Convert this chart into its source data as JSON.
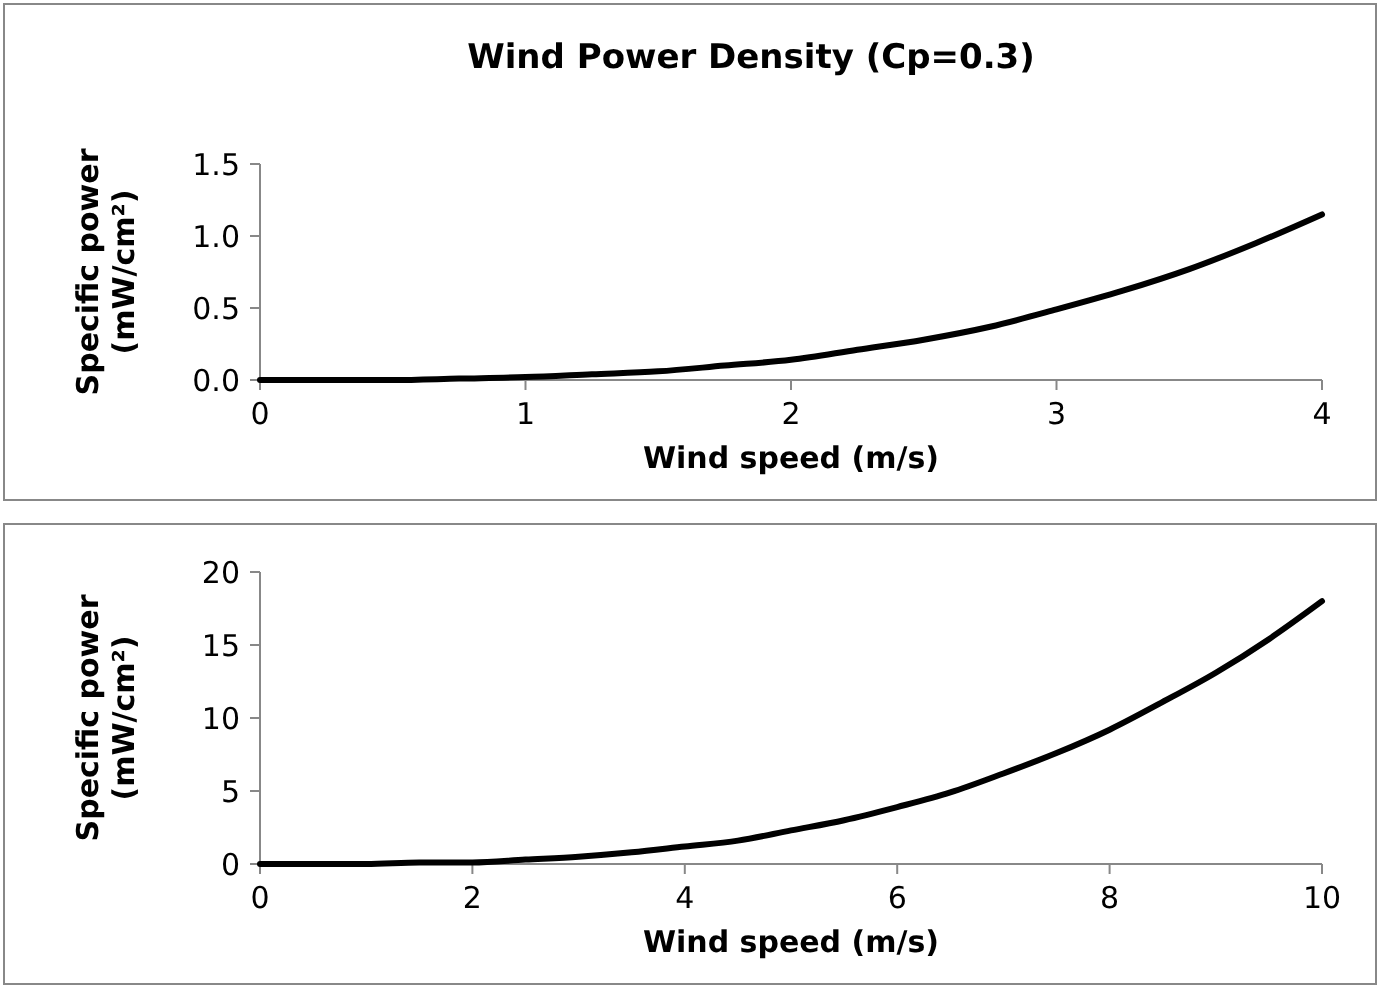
{
  "chart_data": [
    {
      "type": "line",
      "title": "Wind Power Density (Cp=0.3)",
      "xlabel": "Wind speed (m/s)",
      "ylabel": "Specific power\n(mW/cm²)",
      "grid": false,
      "marker": "none",
      "line_style": "solid",
      "x": [
        0,
        0.25,
        0.5,
        0.75,
        1,
        1.25,
        1.5,
        1.75,
        2,
        2.25,
        2.5,
        2.75,
        3,
        3.25,
        3.5,
        3.75,
        4
      ],
      "series": [
        {
          "color": "#000000",
          "values": [
            0,
            0,
            0,
            0.01,
            0.02,
            0.04,
            0.06,
            0.1,
            0.14,
            0.21,
            0.28,
            0.37,
            0.49,
            0.62,
            0.77,
            0.95,
            1.15
          ]
        }
      ],
      "xlim": [
        0,
        4
      ],
      "xticks": [
        0,
        1,
        2,
        3,
        4
      ],
      "ylim": [
        0,
        1.5
      ],
      "yticks": [
        {
          "value": 0,
          "label": "0.0"
        },
        {
          "value": 0.5,
          "label": "0.5"
        },
        {
          "value": 1,
          "label": "1.0"
        },
        {
          "value": 1.5,
          "label": "1.5"
        }
      ]
    },
    {
      "type": "line",
      "xlabel": "Wind speed (m/s)",
      "ylabel": "Specific power\n(mW/cm²)",
      "grid": false,
      "marker": "none",
      "line_style": "solid",
      "x": [
        0,
        0.5,
        1,
        1.5,
        2,
        2.5,
        3,
        3.5,
        4,
        4.5,
        5,
        5.5,
        6,
        6.5,
        7,
        7.5,
        8,
        8.5,
        9,
        9.5,
        10
      ],
      "series": [
        {
          "color": "#000000",
          "values": [
            0,
            0,
            0,
            0.1,
            0.1,
            0.3,
            0.5,
            0.8,
            1.2,
            1.6,
            2.3,
            3,
            3.9,
            4.9,
            6.2,
            7.6,
            9.2,
            11.1,
            13.1,
            15.4,
            18
          ]
        }
      ],
      "xlim": [
        0,
        10
      ],
      "xticks": [
        0,
        2,
        4,
        6,
        8,
        10
      ],
      "ylim": [
        0,
        20
      ],
      "yticks": [
        0,
        5,
        10,
        15,
        20
      ]
    }
  ]
}
